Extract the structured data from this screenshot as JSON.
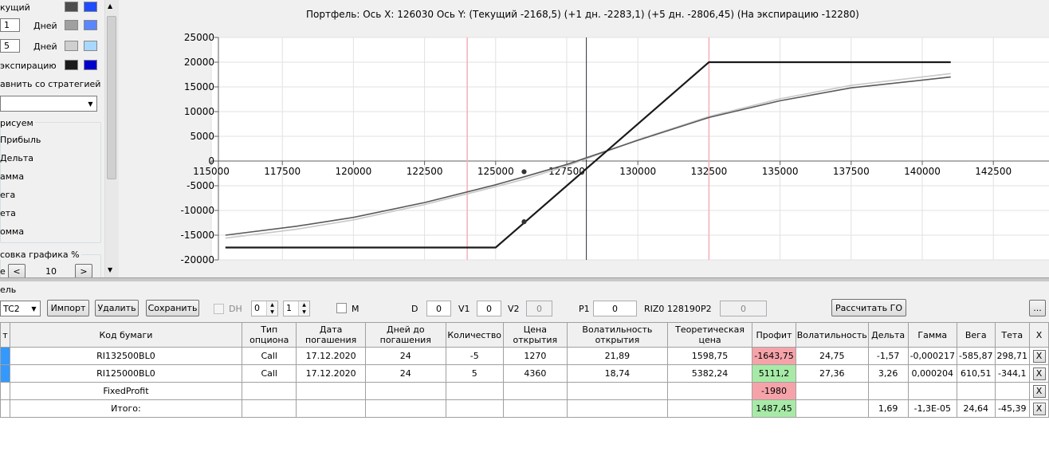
{
  "left_panel": {
    "row_current_label": "кущий",
    "days1_value": "1",
    "days1_label": "Дней",
    "days5_value": "5",
    "days5_label": "Дней",
    "expiration_label": "экспирацию",
    "compare_label": "авнить со стратегией",
    "draw_group_label": "рисуем",
    "draw_items": [
      "Прибыль",
      "Дельта",
      "амма",
      "ега",
      "ета",
      "омма"
    ],
    "draw_percent_label": "совка графика %",
    "draw_percent_prefix": "е",
    "draw_percent_value": "10",
    "prev_btn": "<",
    "next_btn": ">",
    "swatches": {
      "current": [
        "#4d4d4d",
        "#1f4bff"
      ],
      "d1": [
        "#a0a0a0",
        "#5a86ff"
      ],
      "d5": [
        "#cfcfcf",
        "#a8d8ff"
      ],
      "exp": [
        "#1a1a1a",
        "#0000cc"
      ]
    }
  },
  "chart": {
    "title": "Портфель: Ось X:  126030 Ось Y:  (Текущий -2168,5)  (+1 дн. -2283,1)  (+5 дн. -2806,45)  (На экспирацию -12280)"
  },
  "chart_data": {
    "type": "line",
    "x_ticks": [
      "115000",
      "117500",
      "120000",
      "122500",
      "125000",
      "127500",
      "130000",
      "132500",
      "135000",
      "137500",
      "140000",
      "142500"
    ],
    "y_ticks": [
      "25000",
      "20000",
      "15000",
      "10000",
      "5000",
      "0",
      "-5000",
      "-10000",
      "-15000",
      "-20000"
    ],
    "xlim": [
      115000,
      142500
    ],
    "ylim": [
      -20000,
      25000
    ],
    "vlines_red": [
      124000,
      132500
    ],
    "vline_current": 128190,
    "series": [
      {
        "color": "#1a1a1a",
        "x": [
          115500,
          125000,
          132500,
          141000
        ],
        "y": [
          -17500,
          -17500,
          20000,
          20000
        ]
      },
      {
        "color": "#5a5a5a",
        "x": [
          115500,
          118000,
          120000,
          122500,
          125000,
          126000,
          127500,
          130000,
          132500,
          135000,
          137500,
          141000
        ],
        "y": [
          -15000,
          -13200,
          -11400,
          -8400,
          -4800,
          -3200,
          -700,
          4200,
          8800,
          12200,
          14800,
          17000
        ]
      },
      {
        "color": "#c8c8c8",
        "x": [
          115500,
          118000,
          120000,
          122500,
          125000,
          126000,
          127500,
          130000,
          132500,
          135000,
          137500,
          141000
        ],
        "y": [
          -15600,
          -13800,
          -11900,
          -8800,
          -5200,
          -3700,
          -1000,
          4300,
          9000,
          12600,
          15300,
          17700
        ]
      }
    ],
    "markers": [
      {
        "x": 126000,
        "y": -12280
      },
      {
        "x": 126000,
        "y": -2168.5
      }
    ]
  },
  "toolbar": {
    "section_label": "ель",
    "portfolio_combo": "TC2",
    "import_btn": "Импорт",
    "delete_btn": "Удалить",
    "save_btn": "Сохранить",
    "dh_label": "DH",
    "spin1": "0",
    "spin2": "1",
    "m_label": "M",
    "d_label": "D",
    "d_value": "0",
    "v1_label": "V1",
    "v1_value": "0",
    "v2_label": "V2",
    "v2_value": "0",
    "p1_label": "P1",
    "p1_value": "0",
    "riz_label": "RIZ0 128190",
    "p2_label": "P2",
    "p2_value": "0",
    "calc_btn": "Рассчитать ГО",
    "more_btn": "..."
  },
  "grid": {
    "headers": [
      "т",
      "Код бумаги",
      "Тип опциона",
      "Дата погашения",
      "Дней до погашения",
      "Количество",
      "Цена открытия",
      "Волатильность открытия",
      "Теоретическая цена",
      "Профит",
      "Волатильность",
      "Дельта",
      "Гамма",
      "Вега",
      "Тета",
      "X"
    ],
    "rows": [
      {
        "code": "RI132500BL0",
        "type": "Call",
        "date": "17.12.2020",
        "days": "24",
        "qty": "-5",
        "price": "1270",
        "vol_open": "21,89",
        "theo": "1598,75",
        "profit": "-1643,75",
        "vol": "24,75",
        "delta": "-1,57",
        "gamma": "-0,000217",
        "vega": "-585,87",
        "theta": "298,71",
        "x": "X"
      },
      {
        "code": "RI125000BL0",
        "type": "Call",
        "date": "17.12.2020",
        "days": "24",
        "qty": "5",
        "price": "4360",
        "vol_open": "18,74",
        "theo": "5382,24",
        "profit": "5111,2",
        "vol": "27,36",
        "delta": "3,26",
        "gamma": "0,000204",
        "vega": "610,51",
        "theta": "-344,1",
        "x": "X"
      },
      {
        "code": "FixedProfit",
        "type": "",
        "date": "",
        "days": "",
        "qty": "",
        "price": "",
        "vol_open": "",
        "theo": "",
        "profit": "-1980",
        "vol": "",
        "delta": "",
        "gamma": "",
        "vega": "",
        "theta": "",
        "x": "X"
      },
      {
        "code": "Итого:",
        "type": "",
        "date": "",
        "days": "",
        "qty": "",
        "price": "",
        "vol_open": "",
        "theo": "",
        "profit": "1487,45",
        "vol": "",
        "delta": "1,69",
        "gamma": "-1,3E-05",
        "vega": "24,64",
        "theta": "-45,39",
        "x": "X"
      }
    ]
  }
}
